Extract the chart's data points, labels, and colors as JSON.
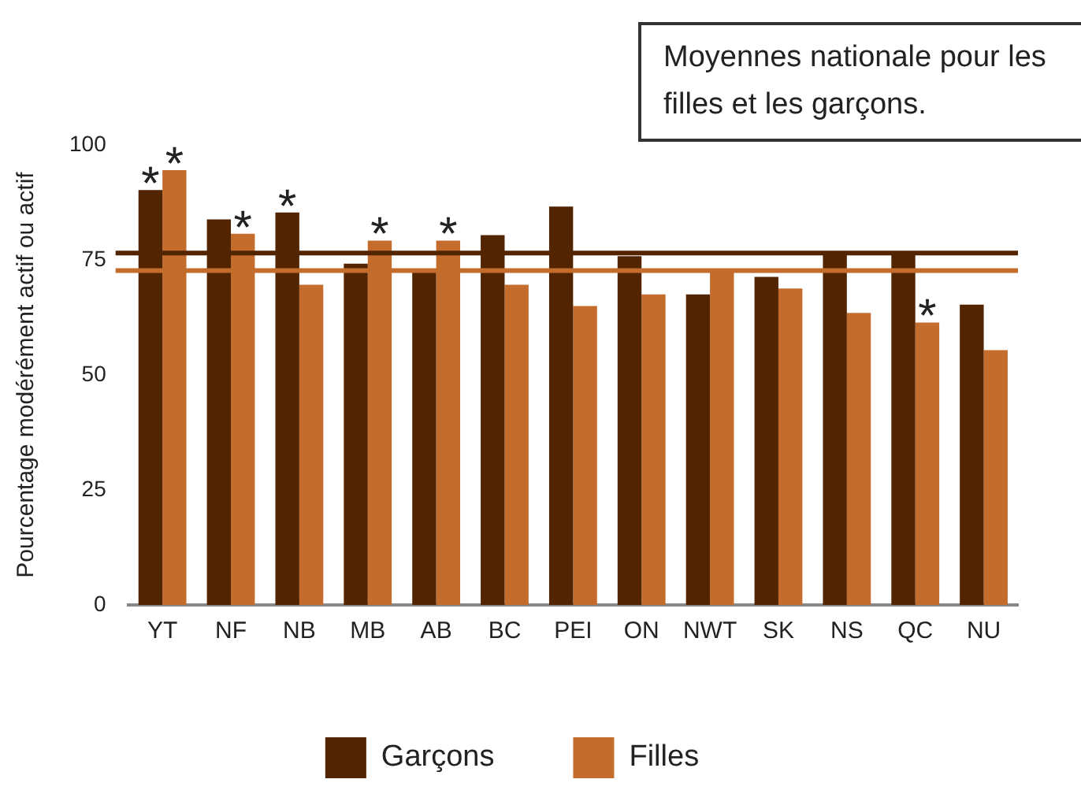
{
  "chart_data": {
    "type": "bar",
    "ylabel": "Pourcentage modérément actif ou actif",
    "categories": [
      "YT",
      "NF",
      "NB",
      "MB",
      "AB",
      "BC",
      "PEI",
      "ON",
      "NWT",
      "SK",
      "NS",
      "QC",
      "NU"
    ],
    "series": [
      {
        "name": "Garçons",
        "color": "#532400",
        "values": [
          90.2,
          83.8,
          85.3,
          74.2,
          73.0,
          80.4,
          86.6,
          75.8,
          67.5,
          71.3,
          76.4,
          76.3,
          65.3
        ]
      },
      {
        "name": "Filles",
        "color": "#c46c2c",
        "values": [
          94.5,
          80.7,
          69.6,
          79.2,
          79.2,
          69.6,
          65.0,
          67.5,
          72.8,
          68.8,
          63.5,
          61.4,
          55.4
        ]
      }
    ],
    "ylim": [
      0,
      100
    ],
    "yticks": [
      0,
      25,
      50,
      75,
      100
    ],
    "grid": false,
    "legend": "bottom",
    "ref_lines": [
      {
        "axis": "y",
        "value": 76.5,
        "color": "#532400"
      },
      {
        "axis": "y",
        "value": 72.7,
        "color": "#c46c2c"
      }
    ],
    "annotations": [
      "Moyennes nationale pour les filles et les garçons.",
      {
        "text": "*",
        "x": "YT",
        "y": 90.2
      },
      {
        "text": "*",
        "x": "YT",
        "y": 94.5
      },
      {
        "text": "*",
        "x": "NF",
        "y": 80.7
      },
      {
        "text": "*",
        "x": "NB",
        "y": 85.3
      },
      {
        "text": "*",
        "x": "MB",
        "y": 79.2
      },
      {
        "text": "*",
        "x": "AB",
        "y": 79.2
      },
      {
        "text": "*",
        "x": "QC",
        "y": 61.4
      }
    ]
  }
}
